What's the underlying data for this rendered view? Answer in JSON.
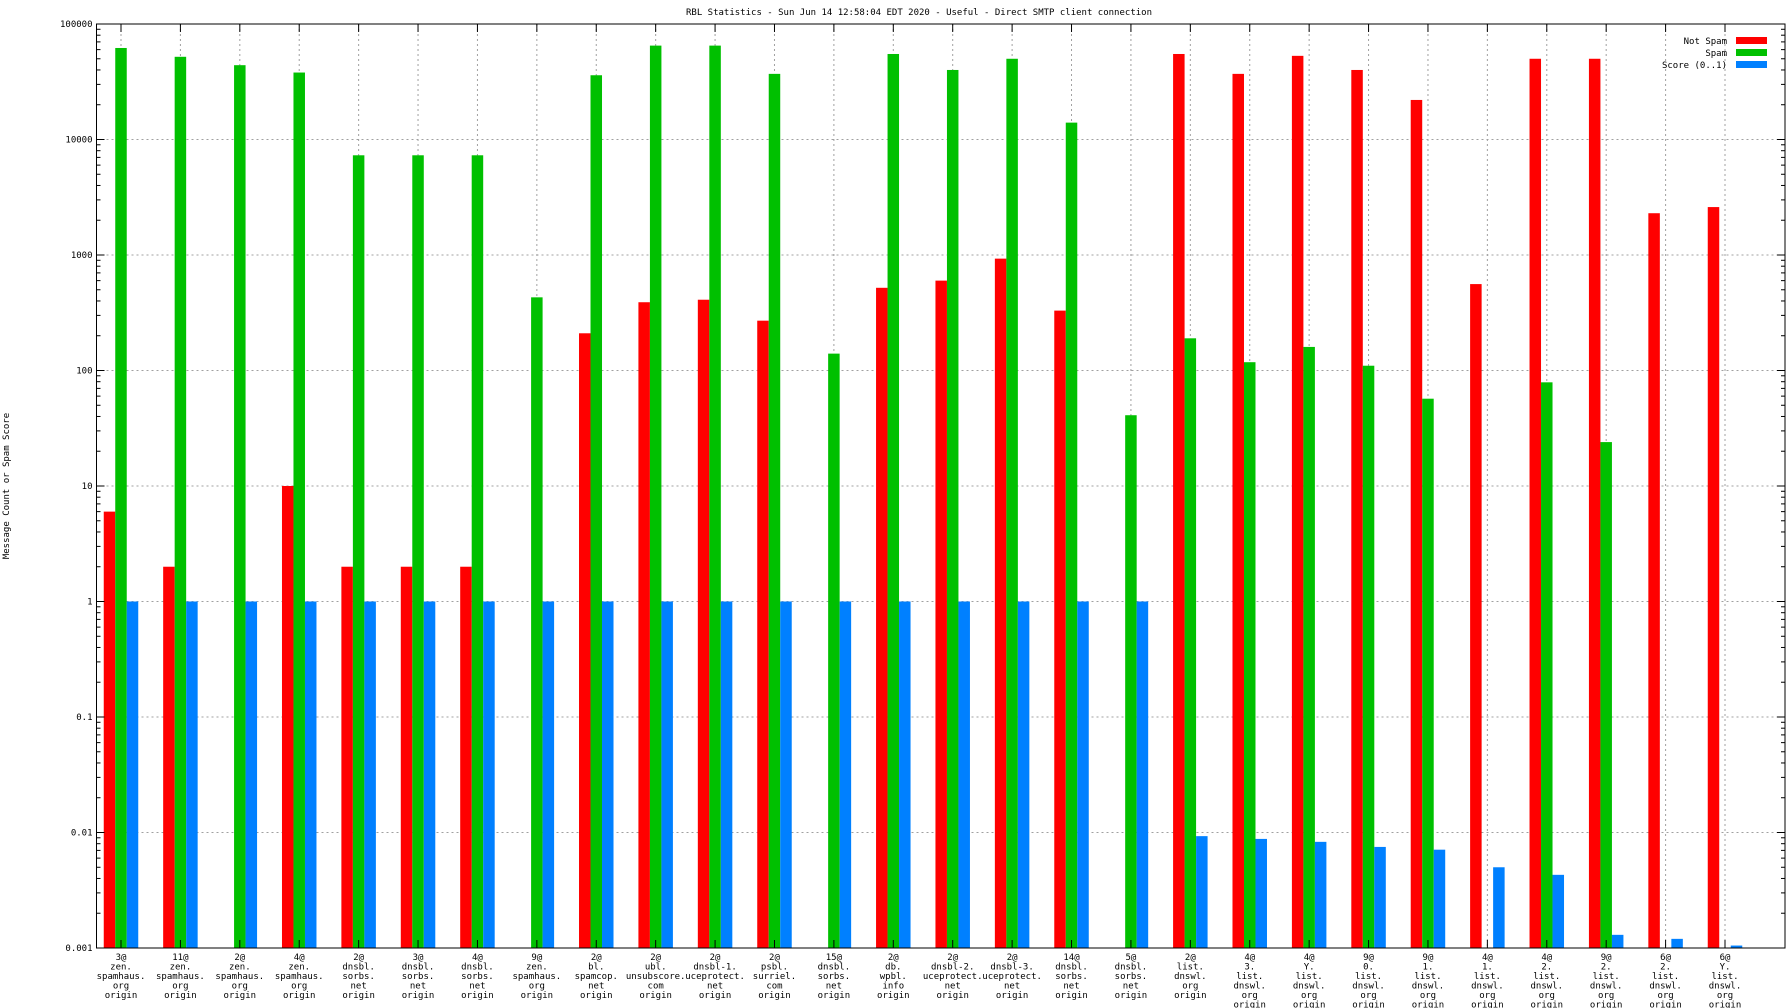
{
  "chart_data": {
    "type": "bar",
    "title": "RBL Statistics - Sun Jun 14 12:58:04 EDT 2020 - Useful - Direct SMTP client connection",
    "xlabel": "",
    "ylabel": "Message Count or Spam Score",
    "yscale": "log",
    "ylim": [
      0.001,
      100000
    ],
    "yticks": [
      "0.001",
      "0.01",
      "0.1",
      "1",
      "10",
      "100",
      "1000",
      "10000",
      "100000"
    ],
    "grid": true,
    "legend_position": "top-right",
    "categories": [
      [
        "3@",
        "zen.",
        "spamhaus.",
        "org",
        "origin"
      ],
      [
        "11@",
        "zen.",
        "spamhaus.",
        "org",
        "origin"
      ],
      [
        "2@",
        "zen.",
        "spamhaus.",
        "org",
        "origin"
      ],
      [
        "4@",
        "zen.",
        "spamhaus.",
        "org",
        "origin"
      ],
      [
        "2@",
        "dnsbl.",
        "sorbs.",
        "net",
        "origin"
      ],
      [
        "3@",
        "dnsbl.",
        "sorbs.",
        "net",
        "origin"
      ],
      [
        "4@",
        "dnsbl.",
        "sorbs.",
        "net",
        "origin"
      ],
      [
        "9@",
        "zen.",
        "spamhaus.",
        "org",
        "origin"
      ],
      [
        "2@",
        "bl.",
        "spamcop.",
        "net",
        "origin"
      ],
      [
        "2@",
        "ubl.",
        "unsubscore.",
        "com",
        "origin"
      ],
      [
        "2@",
        "dnsbl-1.",
        "uceprotect.",
        "net",
        "origin"
      ],
      [
        "2@",
        "psbl.",
        "surriel.",
        "com",
        "origin"
      ],
      [
        "15@",
        "dnsbl.",
        "sorbs.",
        "net",
        "origin"
      ],
      [
        "2@",
        "db.",
        "wpbl.",
        "info",
        "origin"
      ],
      [
        "2@",
        "dnsbl-2.",
        "uceprotect.",
        "net",
        "origin"
      ],
      [
        "2@",
        "dnsbl-3.",
        "uceprotect.",
        "net",
        "origin"
      ],
      [
        "14@",
        "dnsbl.",
        "sorbs.",
        "net",
        "origin"
      ],
      [
        "5@",
        "dnsbl.",
        "sorbs.",
        "net",
        "origin"
      ],
      [
        "2@",
        "list.",
        "dnswl.",
        "org",
        "origin"
      ],
      [
        "4@",
        "3.",
        "list.",
        "dnswl.",
        "org",
        "origin"
      ],
      [
        "4@",
        "Y.",
        "list.",
        "dnswl.",
        "org",
        "origin"
      ],
      [
        "9@",
        "0.",
        "list.",
        "dnswl.",
        "org",
        "origin"
      ],
      [
        "9@",
        "1.",
        "list.",
        "dnswl.",
        "org",
        "origin"
      ],
      [
        "4@",
        "1.",
        "list.",
        "dnswl.",
        "org",
        "origin"
      ],
      [
        "4@",
        "2.",
        "list.",
        "dnswl.",
        "org",
        "origin"
      ],
      [
        "9@",
        "2.",
        "list.",
        "dnswl.",
        "org",
        "origin"
      ],
      [
        "6@",
        "2.",
        "list.",
        "dnswl.",
        "org",
        "origin"
      ],
      [
        "6@",
        "Y.",
        "list.",
        "dnswl.",
        "org",
        "origin"
      ]
    ],
    "series": [
      {
        "name": "Not Spam",
        "color": "#ff0000",
        "values": [
          6,
          2,
          null,
          10,
          2,
          2,
          2,
          null,
          210,
          390,
          410,
          270,
          null,
          520,
          600,
          930,
          330,
          null,
          55000,
          37000,
          53000,
          40000,
          22000,
          560,
          50000,
          50000,
          2300,
          2600
        ]
      },
      {
        "name": "Spam",
        "color": "#00c000",
        "values": [
          62000,
          52000,
          44000,
          38000,
          7300,
          7300,
          7300,
          430,
          36000,
          65000,
          65000,
          37000,
          140,
          55000,
          40000,
          50000,
          14000,
          41,
          190,
          118,
          160,
          110,
          57,
          null,
          79,
          24,
          null,
          null
        ]
      },
      {
        "name": "Score (0..1)",
        "color": "#0080ff",
        "values": [
          1,
          1,
          1,
          1,
          1,
          1,
          1,
          1,
          1,
          1,
          1,
          1,
          1,
          1,
          1,
          1,
          1,
          1,
          0.0093,
          0.0088,
          0.0083,
          0.0075,
          0.0071,
          0.005,
          0.0043,
          0.0013,
          0.0012,
          0.00105
        ]
      }
    ]
  }
}
